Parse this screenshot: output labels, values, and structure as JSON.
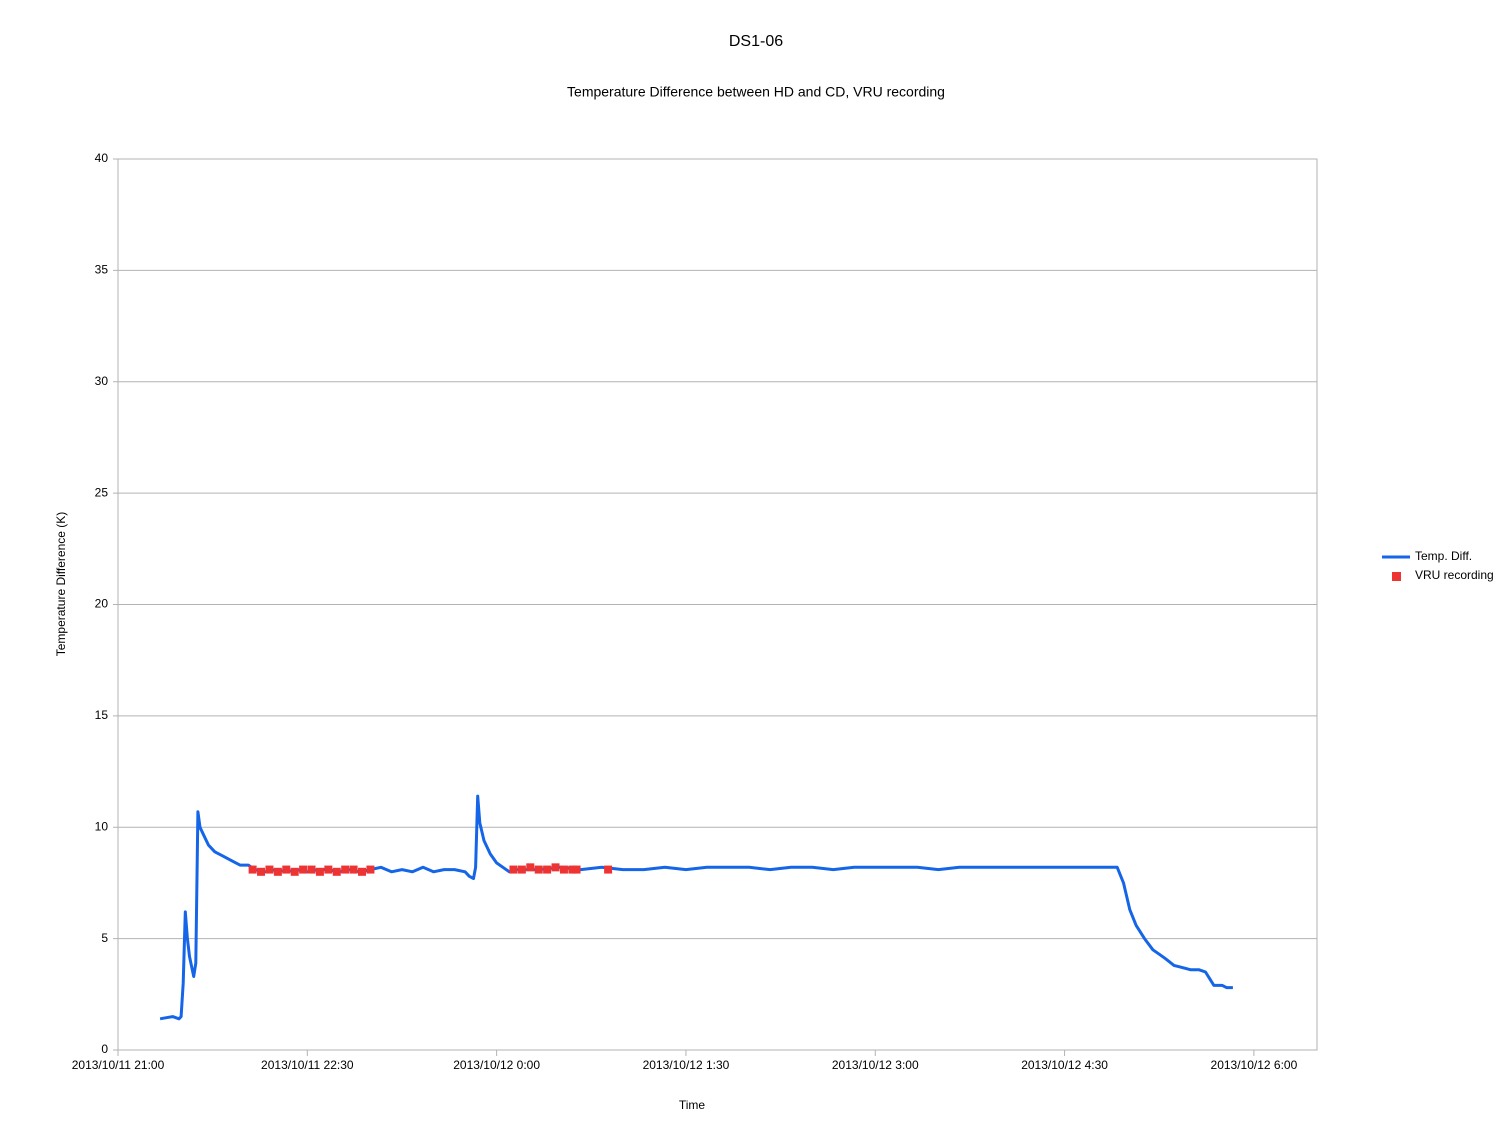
{
  "chart_data": {
    "type": "line",
    "title": "DS1-06",
    "subtitle": "Temperature Difference between HD and CD, VRU recording",
    "x_label": "Time",
    "y_label": "Temperature Difference (K)",
    "xlim": [
      "2013/10/11 21:00",
      "2013/10/12 6:30"
    ],
    "xticks": [
      "2013/10/11 21:00",
      "2013/10/11 22:30",
      "2013/10/12 0:00",
      "2013/10/12 1:30",
      "2013/10/12 3:00",
      "2013/10/12 4:30",
      "2013/10/12 6:00"
    ],
    "ylim": [
      0,
      40
    ],
    "yticks": [
      0,
      5,
      10,
      15,
      20,
      25,
      30,
      35,
      40
    ],
    "grid": true,
    "legend": "right",
    "series": [
      {
        "name": "Temp. Diff.",
        "color": "#1565e8",
        "mode": "line",
        "x": [
          "2013/10/11 21:20",
          "2013/10/11 21:23",
          "2013/10/11 21:26",
          "2013/10/11 21:29",
          "2013/10/11 21:30",
          "2013/10/11 21:31",
          "2013/10/11 21:32",
          "2013/10/11 21:33",
          "2013/10/11 21:34",
          "2013/10/11 21:36",
          "2013/10/11 21:37",
          "2013/10/11 21:38",
          "2013/10/11 21:39",
          "2013/10/11 21:41",
          "2013/10/11 21:43",
          "2013/10/11 21:46",
          "2013/10/11 21:50",
          "2013/10/11 21:54",
          "2013/10/11 21:58",
          "2013/10/11 22:02",
          "2013/10/11 22:05",
          "2013/10/11 22:10",
          "2013/10/11 22:15",
          "2013/10/11 22:20",
          "2013/10/11 22:25",
          "2013/10/11 22:30",
          "2013/10/11 22:35",
          "2013/10/11 22:40",
          "2013/10/11 22:45",
          "2013/10/11 22:50",
          "2013/10/11 22:55",
          "2013/10/11 23:00",
          "2013/10/11 23:05",
          "2013/10/11 23:10",
          "2013/10/11 23:15",
          "2013/10/11 23:20",
          "2013/10/11 23:25",
          "2013/10/11 23:30",
          "2013/10/11 23:35",
          "2013/10/11 23:40",
          "2013/10/11 23:45",
          "2013/10/11 23:47",
          "2013/10/11 23:49",
          "2013/10/11 23:50",
          "2013/10/11 23:51",
          "2013/10/11 23:52",
          "2013/10/11 23:54",
          "2013/10/11 23:57",
          "2013/10/12 0:00",
          "2013/10/12 0:03",
          "2013/10/12 0:06",
          "2013/10/12 0:10",
          "2013/10/12 0:20",
          "2013/10/12 0:30",
          "2013/10/12 0:40",
          "2013/10/12 0:50",
          "2013/10/12 1:00",
          "2013/10/12 1:10",
          "2013/10/12 1:20",
          "2013/10/12 1:30",
          "2013/10/12 1:40",
          "2013/10/12 1:50",
          "2013/10/12 2:00",
          "2013/10/12 2:10",
          "2013/10/12 2:20",
          "2013/10/12 2:30",
          "2013/10/12 2:40",
          "2013/10/12 2:50",
          "2013/10/12 3:00",
          "2013/10/12 3:10",
          "2013/10/12 3:20",
          "2013/10/12 3:30",
          "2013/10/12 3:40",
          "2013/10/12 3:50",
          "2013/10/12 4:00",
          "2013/10/12 4:10",
          "2013/10/12 4:20",
          "2013/10/12 4:30",
          "2013/10/12 4:40",
          "2013/10/12 4:50",
          "2013/10/12 4:55",
          "2013/10/12 4:58",
          "2013/10/12 5:01",
          "2013/10/12 5:04",
          "2013/10/12 5:08",
          "2013/10/12 5:12",
          "2013/10/12 5:15",
          "2013/10/12 5:18",
          "2013/10/12 5:22",
          "2013/10/12 5:26",
          "2013/10/12 5:30",
          "2013/10/12 5:34",
          "2013/10/12 5:37",
          "2013/10/12 5:39",
          "2013/10/12 5:41",
          "2013/10/12 5:45",
          "2013/10/12 5:47",
          "2013/10/12 5:50"
        ],
        "values": [
          1.4,
          1.45,
          1.5,
          1.4,
          1.5,
          3.0,
          6.2,
          5.0,
          4.2,
          3.3,
          3.9,
          10.7,
          10.0,
          9.6,
          9.2,
          8.9,
          8.7,
          8.5,
          8.3,
          8.3,
          8.1,
          8.0,
          8.1,
          8.0,
          8.1,
          8.0,
          8.1,
          8.1,
          8.0,
          8.1,
          8.0,
          8.1,
          8.2,
          8.0,
          8.1,
          8.0,
          8.2,
          8.0,
          8.1,
          8.1,
          8.0,
          7.8,
          7.7,
          8.2,
          11.4,
          10.2,
          9.4,
          8.8,
          8.4,
          8.2,
          8.0,
          8.1,
          8.1,
          8.2,
          8.1,
          8.2,
          8.1,
          8.1,
          8.2,
          8.1,
          8.2,
          8.2,
          8.2,
          8.1,
          8.2,
          8.2,
          8.1,
          8.2,
          8.2,
          8.2,
          8.2,
          8.1,
          8.2,
          8.2,
          8.2,
          8.2,
          8.2,
          8.2,
          8.2,
          8.2,
          8.2,
          7.5,
          6.3,
          5.6,
          5.0,
          4.5,
          4.3,
          4.1,
          3.8,
          3.7,
          3.6,
          3.6,
          3.5,
          3.2,
          2.9,
          2.9,
          2.8,
          2.8
        ]
      },
      {
        "name": "VRU recording",
        "color": "#ee3333",
        "mode": "markers",
        "x": [
          "2013/10/11 22:04",
          "2013/10/11 22:08",
          "2013/10/11 22:12",
          "2013/10/11 22:16",
          "2013/10/11 22:20",
          "2013/10/11 22:24",
          "2013/10/11 22:28",
          "2013/10/11 22:32",
          "2013/10/11 22:36",
          "2013/10/11 22:40",
          "2013/10/11 22:44",
          "2013/10/11 22:48",
          "2013/10/11 22:52",
          "2013/10/11 22:56",
          "2013/10/11 23:00",
          "2013/10/12 0:08",
          "2013/10/12 0:12",
          "2013/10/12 0:16",
          "2013/10/12 0:20",
          "2013/10/12 0:24",
          "2013/10/12 0:28",
          "2013/10/12 0:32",
          "2013/10/12 0:36",
          "2013/10/12 0:38",
          "2013/10/12 0:53"
        ],
        "values": [
          8.1,
          8.0,
          8.1,
          8.0,
          8.1,
          8.0,
          8.1,
          8.1,
          8.0,
          8.1,
          8.0,
          8.1,
          8.1,
          8.0,
          8.1,
          8.1,
          8.1,
          8.2,
          8.1,
          8.1,
          8.2,
          8.1,
          8.1,
          8.1,
          8.1
        ]
      }
    ]
  }
}
